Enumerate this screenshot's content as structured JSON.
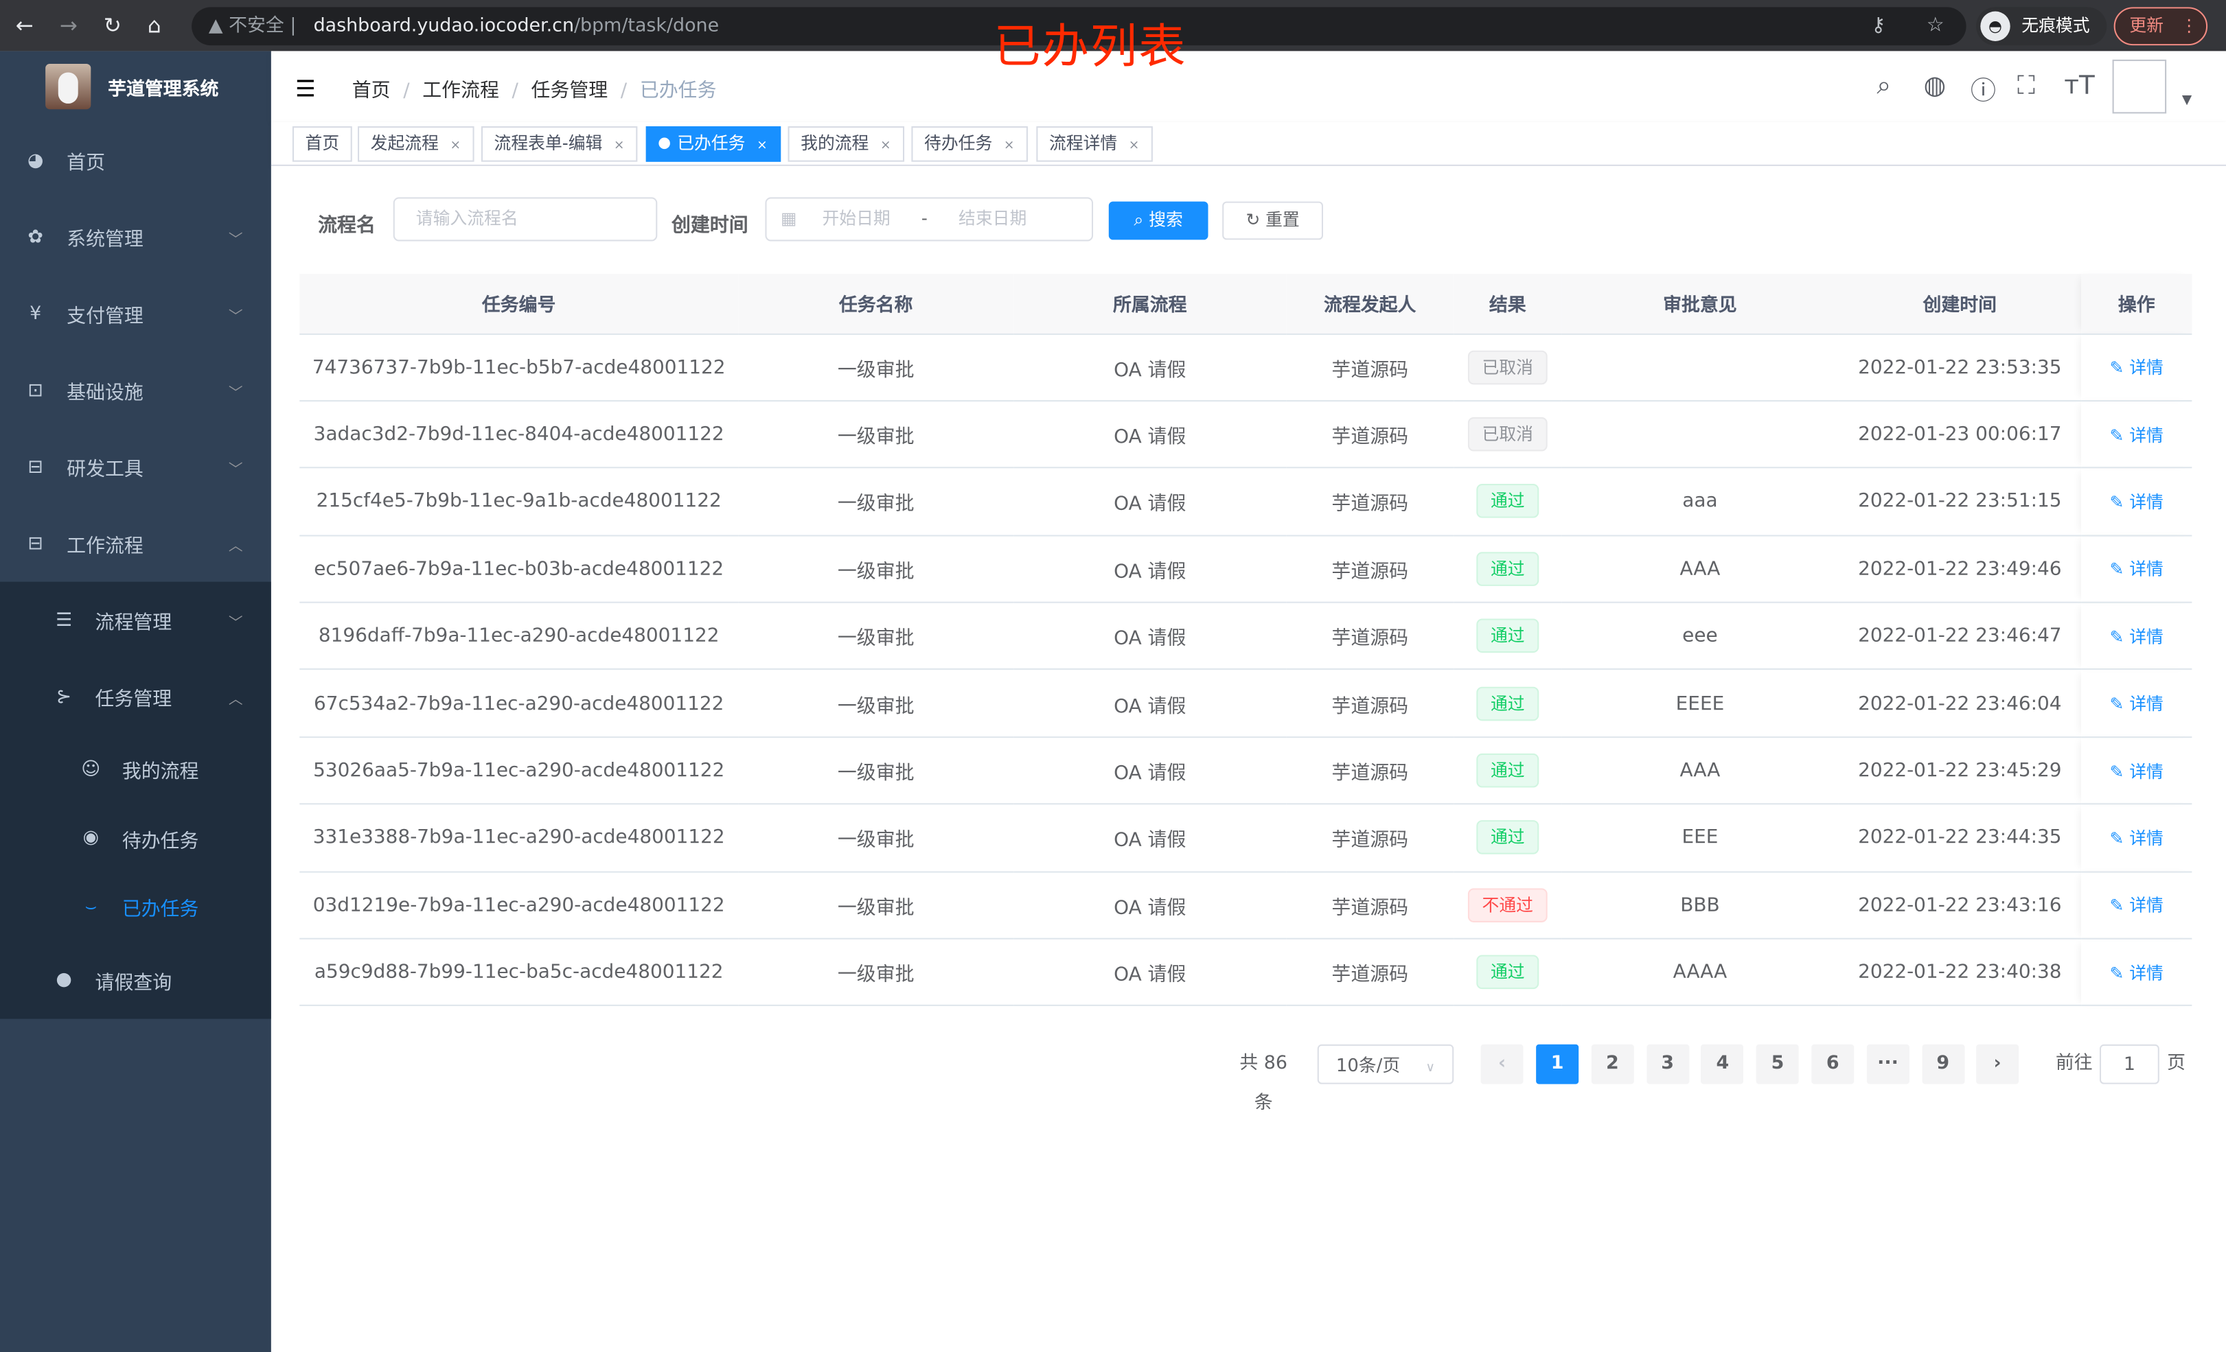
{
  "browser": {
    "security": "不安全",
    "host": "dashboard.yudao.iocoder.cn",
    "path": "/bpm/task/done",
    "incognito": "无痕模式",
    "update": "更新"
  },
  "annotation": "已办列表",
  "sidebar": {
    "title": "芋道管理系统",
    "items": [
      {
        "label": "首页",
        "icon": "dashboard-icon",
        "glyph": "◕",
        "level": 1
      },
      {
        "label": "系统管理",
        "icon": "gear-icon",
        "glyph": "✿",
        "level": 1,
        "chevron": "﹀"
      },
      {
        "label": "支付管理",
        "icon": "yen-icon",
        "glyph": "¥",
        "level": 1,
        "chevron": "﹀"
      },
      {
        "label": "基础设施",
        "icon": "monitor-icon",
        "glyph": "⊡",
        "level": 1,
        "chevron": "﹀"
      },
      {
        "label": "研发工具",
        "icon": "toolbox-icon",
        "glyph": "⊟",
        "level": 1,
        "chevron": "﹀"
      },
      {
        "label": "工作流程",
        "icon": "toolbox-icon",
        "glyph": "⊟",
        "level": 1,
        "chevron": "︿"
      },
      {
        "label": "流程管理",
        "icon": "list-icon",
        "glyph": "☰",
        "level": 2,
        "chevron": "﹀"
      },
      {
        "label": "任务管理",
        "icon": "task-icon",
        "glyph": "⊱",
        "level": 2,
        "chevron": "︿"
      },
      {
        "label": "我的流程",
        "icon": "robot-icon",
        "glyph": "☺",
        "level": 3
      },
      {
        "label": "待办任务",
        "icon": "eye-open-icon",
        "glyph": "◉",
        "level": 3
      },
      {
        "label": "已办任务",
        "icon": "eye-closed-icon",
        "glyph": "⌣",
        "level": 3,
        "active": true
      },
      {
        "label": "请假查询",
        "icon": "user-icon",
        "glyph": "●",
        "level": 2
      }
    ]
  },
  "breadcrumb": [
    "首页",
    "工作流程",
    "任务管理",
    "已办任务"
  ],
  "tags": [
    {
      "label": "首页"
    },
    {
      "label": "发起流程",
      "closable": true
    },
    {
      "label": "流程表单-编辑",
      "closable": true
    },
    {
      "label": "已办任务",
      "closable": true,
      "active": true
    },
    {
      "label": "我的流程",
      "closable": true
    },
    {
      "label": "待办任务",
      "closable": true
    },
    {
      "label": "流程详情",
      "closable": true
    }
  ],
  "search": {
    "name_label": "流程名",
    "name_placeholder": "请输入流程名",
    "time_label": "创建时间",
    "start_placeholder": "开始日期",
    "end_placeholder": "结束日期",
    "range_sep": "-",
    "search_btn": "搜索",
    "reset_btn": "重置"
  },
  "table": {
    "columns": [
      "任务编号",
      "任务名称",
      "所属流程",
      "流程发起人",
      "结果",
      "审批意见",
      "创建时间",
      "操作"
    ],
    "action": "详情",
    "rows": [
      {
        "id": "74736737-7b9b-11ec-b5b7-acde48001122",
        "name": "一级审批",
        "process": "OA 请假",
        "starter": "芋道源码",
        "result": "已取消",
        "status": "cancel",
        "comment": "",
        "time": "2022-01-22 23:53:35"
      },
      {
        "id": "3adac3d2-7b9d-11ec-8404-acde48001122",
        "name": "一级审批",
        "process": "OA 请假",
        "starter": "芋道源码",
        "result": "已取消",
        "status": "cancel",
        "comment": "",
        "time": "2022-01-23 00:06:17"
      },
      {
        "id": "215cf4e5-7b9b-11ec-9a1b-acde48001122",
        "name": "一级审批",
        "process": "OA 请假",
        "starter": "芋道源码",
        "result": "通过",
        "status": "pass",
        "comment": "aaa",
        "time": "2022-01-22 23:51:15"
      },
      {
        "id": "ec507ae6-7b9a-11ec-b03b-acde48001122",
        "name": "一级审批",
        "process": "OA 请假",
        "starter": "芋道源码",
        "result": "通过",
        "status": "pass",
        "comment": "AAA",
        "time": "2022-01-22 23:49:46"
      },
      {
        "id": "8196daff-7b9a-11ec-a290-acde48001122",
        "name": "一级审批",
        "process": "OA 请假",
        "starter": "芋道源码",
        "result": "通过",
        "status": "pass",
        "comment": "eee",
        "time": "2022-01-22 23:46:47"
      },
      {
        "id": "67c534a2-7b9a-11ec-a290-acde48001122",
        "name": "一级审批",
        "process": "OA 请假",
        "starter": "芋道源码",
        "result": "通过",
        "status": "pass",
        "comment": "EEEE",
        "time": "2022-01-22 23:46:04"
      },
      {
        "id": "53026aa5-7b9a-11ec-a290-acde48001122",
        "name": "一级审批",
        "process": "OA 请假",
        "starter": "芋道源码",
        "result": "通过",
        "status": "pass",
        "comment": "AAA",
        "time": "2022-01-22 23:45:29"
      },
      {
        "id": "331e3388-7b9a-11ec-a290-acde48001122",
        "name": "一级审批",
        "process": "OA 请假",
        "starter": "芋道源码",
        "result": "通过",
        "status": "pass",
        "comment": "EEE",
        "time": "2022-01-22 23:44:35"
      },
      {
        "id": "03d1219e-7b9a-11ec-a290-acde48001122",
        "name": "一级审批",
        "process": "OA 请假",
        "starter": "芋道源码",
        "result": "不通过",
        "status": "fail",
        "comment": "BBB",
        "time": "2022-01-22 23:43:16"
      },
      {
        "id": "a59c9d88-7b99-11ec-ba5c-acde48001122",
        "name": "一级审批",
        "process": "OA 请假",
        "starter": "芋道源码",
        "result": "通过",
        "status": "pass",
        "comment": "AAAA",
        "time": "2022-01-22 23:40:38"
      }
    ]
  },
  "pagination": {
    "total": "共 86 条",
    "page_size": "10条/页",
    "pages": [
      "1",
      "2",
      "3",
      "4",
      "5",
      "6",
      "···",
      "9"
    ],
    "current": "1",
    "goto_label": "前往",
    "goto_value": "1",
    "page_unit": "页"
  },
  "colors": {
    "accent": "#1890ff",
    "sidebar": "#304156",
    "submenu": "#1f2d3d",
    "pass": "#13ce66",
    "fail": "#ff4949",
    "annotation": "#ff2a00"
  }
}
